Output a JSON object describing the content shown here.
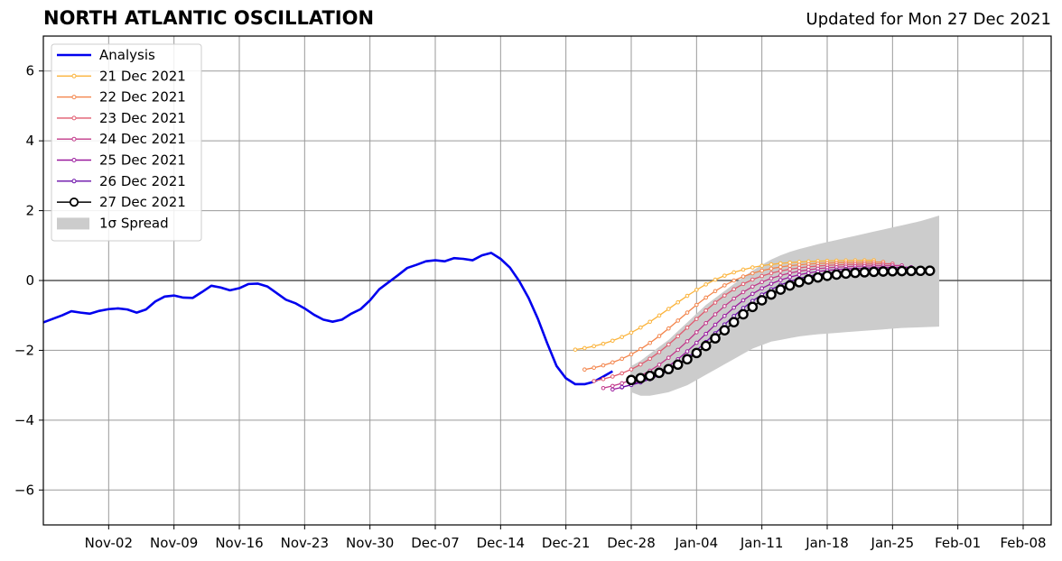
{
  "header": {
    "title": "NORTH ATLANTIC OSCILLATION",
    "subtitle": "Updated for Mon 27 Dec 2021"
  },
  "chart_data": {
    "type": "line",
    "title": "NORTH ATLANTIC OSCILLATION",
    "subtitle": "Updated for Mon 27 Dec 2021",
    "xlabel": "",
    "ylabel": "",
    "x_axis": "date",
    "xlim": [
      "2021-10-26",
      "2022-02-11"
    ],
    "ylim": [
      -7,
      7
    ],
    "xticks": [
      "Nov-02",
      "Nov-09",
      "Nov-16",
      "Nov-23",
      "Nov-30",
      "Dec-07",
      "Dec-14",
      "Dec-21",
      "Dec-28",
      "Jan-04",
      "Jan-11",
      "Jan-18",
      "Jan-25",
      "Feb-01",
      "Feb-08"
    ],
    "yticks": [
      -6,
      -4,
      -2,
      0,
      2,
      4,
      6
    ],
    "grid": true,
    "zero_line": true,
    "legend_position": "upper-left",
    "colors": {
      "analysis": "#0000ee",
      "spread": "#cccccc",
      "d21": "#fbb33a",
      "d22": "#f3844a",
      "d23": "#e05a6e",
      "d24": "#c2398a",
      "d25": "#9a1a9e",
      "d26": "#6a0fa8",
      "d27": "#000000"
    },
    "analysis": {
      "name": "Analysis",
      "start": "2021-10-26",
      "values": [
        -1.2,
        -1.1,
        -1.0,
        -0.88,
        -0.92,
        -0.95,
        -0.87,
        -0.82,
        -0.8,
        -0.83,
        -0.92,
        -0.83,
        -0.6,
        -0.46,
        -0.43,
        -0.49,
        -0.5,
        -0.33,
        -0.15,
        -0.2,
        -0.28,
        -0.22,
        -0.1,
        -0.09,
        -0.17,
        -0.36,
        -0.55,
        -0.65,
        -0.8,
        -0.98,
        -1.12,
        -1.18,
        -1.12,
        -0.95,
        -0.82,
        -0.57,
        -0.25,
        -0.05,
        0.15,
        0.36,
        0.45,
        0.55,
        0.58,
        0.55,
        0.64,
        0.62,
        0.58,
        0.72,
        0.79,
        0.62,
        0.37,
        -0.02,
        -0.5,
        -1.1,
        -1.8,
        -2.45,
        -2.8,
        -2.97,
        -2.97,
        -2.9,
        -2.75,
        -2.6
      ]
    },
    "forecasts": [
      {
        "name": "21 Dec 2021",
        "start": "2021-12-22",
        "start_value": -1.98,
        "end": "2022-01-23",
        "end_value": 0.58,
        "color_key": "d21"
      },
      {
        "name": "22 Dec 2021",
        "start": "2021-12-23",
        "start_value": -2.55,
        "end": "2022-01-24",
        "end_value": 0.53,
        "color_key": "d22"
      },
      {
        "name": "23 Dec 2021",
        "start": "2021-12-24",
        "start_value": -2.88,
        "end": "2022-01-25",
        "end_value": 0.48,
        "color_key": "d23"
      },
      {
        "name": "24 Dec 2021",
        "start": "2021-12-25",
        "start_value": -3.08,
        "end": "2022-01-26",
        "end_value": 0.43,
        "color_key": "d24"
      },
      {
        "name": "25 Dec 2021",
        "start": "2021-12-26",
        "start_value": -3.12,
        "end": "2022-01-27",
        "end_value": 0.38,
        "color_key": "d25"
      },
      {
        "name": "26 Dec 2021",
        "start": "2021-12-27",
        "start_value": -3.05,
        "end": "2022-01-28",
        "end_value": 0.33,
        "color_key": "d26"
      },
      {
        "name": "27 Dec 2021",
        "start": "2021-12-28",
        "start_value": -2.85,
        "end": "2022-01-29",
        "end_value": 0.28,
        "color_key": "d27",
        "open_markers": true
      }
    ],
    "spread": {
      "name": "1σ Spread",
      "start": "2021-12-28",
      "upper": [
        -2.45,
        -2.3,
        -2.1,
        -1.9,
        -1.7,
        -1.45,
        -1.2,
        -0.95,
        -0.7,
        -0.5,
        -0.3,
        -0.1,
        0.1,
        0.28,
        0.45,
        0.6,
        0.72,
        0.82,
        0.9,
        0.97,
        1.04,
        1.1,
        1.16,
        1.22,
        1.28,
        1.34,
        1.4,
        1.46,
        1.52,
        1.58,
        1.64,
        1.7,
        1.78,
        1.86
      ],
      "lower": [
        -3.2,
        -3.3,
        -3.3,
        -3.25,
        -3.2,
        -3.1,
        -3.0,
        -2.85,
        -2.7,
        -2.55,
        -2.4,
        -2.25,
        -2.1,
        -1.95,
        -1.85,
        -1.75,
        -1.7,
        -1.65,
        -1.6,
        -1.57,
        -1.54,
        -1.52,
        -1.5,
        -1.48,
        -1.46,
        -1.44,
        -1.42,
        -1.4,
        -1.38,
        -1.36,
        -1.35,
        -1.34,
        -1.33,
        -1.32
      ]
    },
    "legend": [
      "Analysis",
      "21 Dec 2021",
      "22 Dec 2021",
      "23 Dec 2021",
      "24 Dec 2021",
      "25 Dec 2021",
      "26 Dec 2021",
      "27 Dec 2021",
      "1σ Spread"
    ]
  }
}
